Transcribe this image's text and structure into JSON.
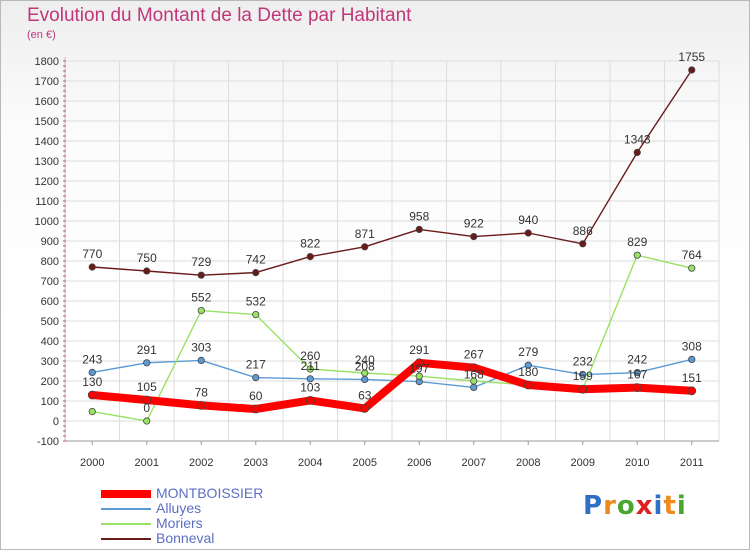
{
  "chart_data": {
    "type": "line",
    "title": "Evolution du Montant de la Dette par Habitant",
    "unit_label": "(en €)",
    "x": [
      "2000",
      "2001",
      "2002",
      "2003",
      "2004",
      "2005",
      "2006",
      "2007",
      "2008",
      "2009",
      "2010",
      "2011"
    ],
    "ylim": [
      -100,
      1800
    ],
    "yticks": [
      -100,
      0,
      100,
      200,
      300,
      400,
      500,
      600,
      700,
      800,
      900,
      1000,
      1100,
      1200,
      1300,
      1400,
      1500,
      1600,
      1700,
      1800
    ],
    "grid": true,
    "legend_position": "bottom-left",
    "series": [
      {
        "name": "MONTBOISSIER",
        "color": "#ff0000",
        "values": [
          130,
          105,
          78,
          60,
          103,
          63,
          291,
          267,
          180,
          159,
          167,
          151
        ],
        "point_labels": [
          "130",
          "105",
          "78",
          "60",
          "103",
          "63",
          "291",
          "267",
          "180",
          "159",
          "167",
          "151"
        ]
      },
      {
        "name": "Alluyes",
        "color": "#5b9bd5",
        "values": [
          243,
          291,
          303,
          217,
          211,
          208,
          197,
          168,
          279,
          232,
          242,
          308
        ],
        "point_labels": [
          "243",
          "291",
          "303",
          "217",
          "211",
          "208",
          "197",
          "168",
          "279",
          "232",
          "242",
          "308"
        ]
      },
      {
        "name": "Moriers",
        "color": "#99e266",
        "values": [
          47,
          0,
          552,
          532,
          260,
          240,
          224,
          200,
          180,
          159,
          829,
          764
        ],
        "point_labels": [
          "",
          "0",
          "552",
          "532",
          "260",
          "240",
          "",
          "",
          "",
          "",
          "829",
          "764"
        ]
      },
      {
        "name": "Bonneval",
        "color": "#6b1a1a",
        "values": [
          770,
          750,
          729,
          742,
          822,
          871,
          958,
          922,
          940,
          886,
          1343,
          1755
        ],
        "point_labels": [
          "770",
          "750",
          "729",
          "742",
          "822",
          "871",
          "958",
          "922",
          "940",
          "886",
          "1343",
          "1755"
        ]
      }
    ]
  },
  "logo": {
    "letters": [
      "P",
      "r",
      "o",
      "x",
      "i",
      "t",
      "i"
    ],
    "colors": [
      "#2f6fc4",
      "#f08a1c",
      "#4aa62e",
      "#e02020",
      "#2f6fc4",
      "#f08a1c",
      "#4aa62e"
    ]
  }
}
